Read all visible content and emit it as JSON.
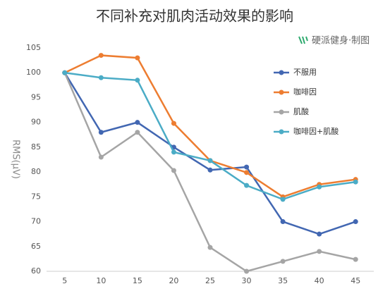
{
  "chart_data": {
    "type": "line",
    "title": "不同补充对肌肉活动效果的影响",
    "source": "硬派健身·制图",
    "y_label": "RMS(μV)",
    "categories": [
      "5",
      "10",
      "15",
      "20",
      "25",
      "30",
      "35",
      "40",
      "45"
    ],
    "series": [
      {
        "name": "不服用",
        "color": "#4267b2",
        "values": [
          100,
          88,
          90,
          85,
          80.4,
          81,
          70,
          67.5,
          70
        ]
      },
      {
        "name": "咖啡因",
        "color": "#ed7d31",
        "values": [
          100,
          103.5,
          103,
          89.8,
          82.3,
          79.9,
          75,
          77.5,
          78.5
        ]
      },
      {
        "name": "肌酸",
        "color": "#a5a5a5",
        "values": [
          100,
          83,
          88,
          80.3,
          64.8,
          60,
          62,
          64,
          62.4
        ]
      },
      {
        "name": "咖啡因+肌酸",
        "color": "#4bacc6",
        "values": [
          100,
          99,
          98.5,
          84,
          82.3,
          77.3,
          74.5,
          77,
          78
        ]
      }
    ],
    "ylim": [
      60,
      105
    ],
    "yticks": [
      60,
      65,
      70,
      75,
      80,
      85,
      90,
      95,
      100,
      105
    ],
    "grid": false,
    "legend": "right"
  }
}
